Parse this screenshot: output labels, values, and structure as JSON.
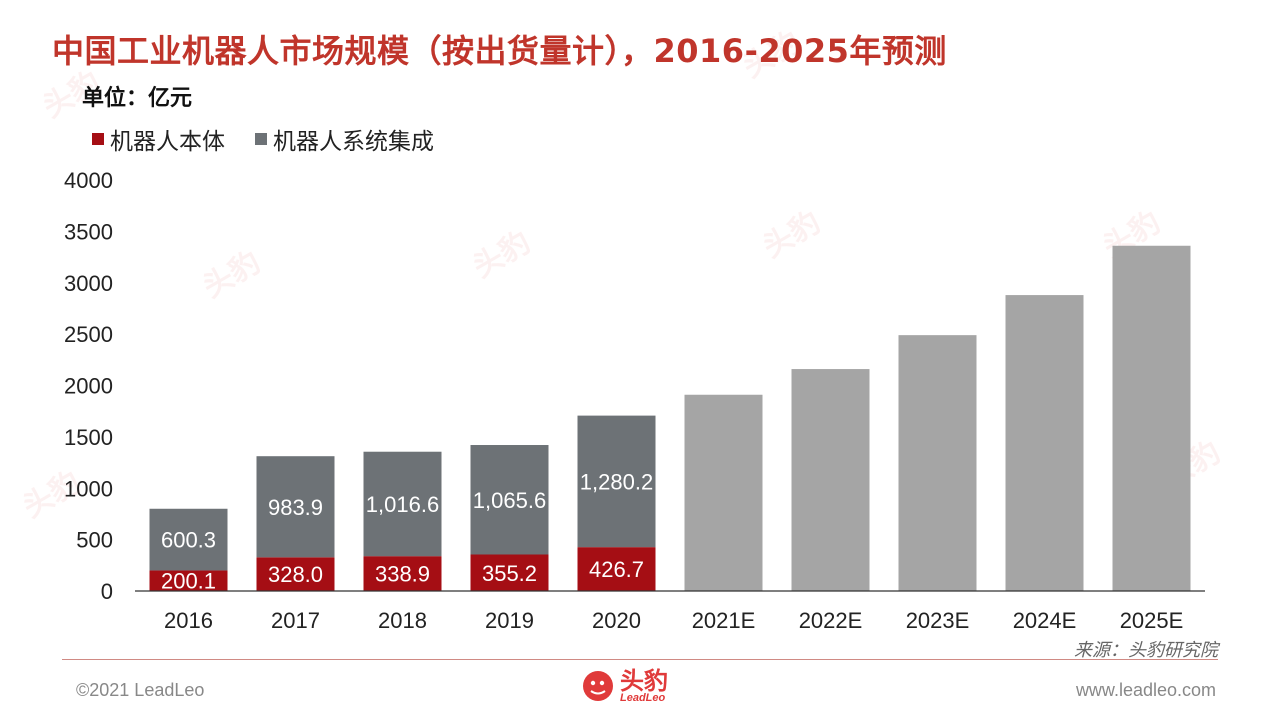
{
  "title": "中国工业机器人市场规模（按出货量计），2016-2025年预测",
  "unit_label": "单位：亿元",
  "source": "来源：头豹研究院",
  "footer": {
    "copyright": "©2021 LeadLeo",
    "website": "www.leadleo.com",
    "logo_cn": "头豹",
    "logo_en": "LeadLeo"
  },
  "colors": {
    "title": "#c0352b",
    "body_series": "#a50e14",
    "integration_series": "#6d7276",
    "forecast": "#a5a5a5",
    "axis": "#333333"
  },
  "chart_data": {
    "type": "bar",
    "stacked": true,
    "categories": [
      "2016",
      "2017",
      "2018",
      "2019",
      "2020",
      "2021E",
      "2022E",
      "2023E",
      "2024E",
      "2025E"
    ],
    "series": [
      {
        "name": "机器人本体",
        "values": [
          200.1,
          328.0,
          338.9,
          355.2,
          426.7,
          null,
          null,
          null,
          null,
          null
        ],
        "labels": [
          "200.1",
          "328.0",
          "338.9",
          "355.2",
          "426.7",
          "",
          "",
          "",
          "",
          ""
        ]
      },
      {
        "name": "机器人系统集成",
        "values": [
          600.3,
          983.9,
          1016.6,
          1065.6,
          1280.2,
          null,
          null,
          null,
          null,
          null
        ],
        "labels": [
          "600.3",
          "983.9",
          "1,016.6",
          "1,065.6",
          "1,280.2",
          "",
          "",
          "",
          "",
          ""
        ]
      }
    ],
    "forecast_totals": [
      null,
      null,
      null,
      null,
      null,
      1910,
      2160,
      2490,
      2880,
      3360
    ],
    "ylim": [
      0,
      4000
    ],
    "yticks": [
      "0",
      "500",
      "1000",
      "1500",
      "2000",
      "2500",
      "3000",
      "3500",
      "4000"
    ],
    "legend_position": "top-left",
    "grid": false
  }
}
